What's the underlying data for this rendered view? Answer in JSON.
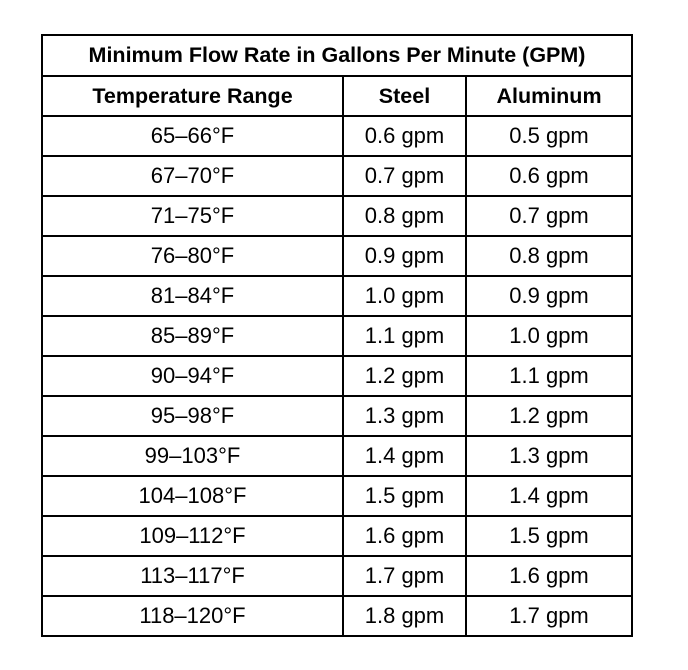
{
  "table": {
    "title": "Minimum Flow Rate in Gallons Per Minute (GPM)",
    "headers": [
      "Temperature Range",
      "Steel",
      "Aluminum"
    ],
    "rows": [
      [
        "65–66°F",
        "0.6 gpm",
        "0.5 gpm"
      ],
      [
        "67–70°F",
        "0.7 gpm",
        "0.6 gpm"
      ],
      [
        "71–75°F",
        "0.8 gpm",
        "0.7 gpm"
      ],
      [
        "76–80°F",
        "0.9 gpm",
        "0.8 gpm"
      ],
      [
        "81–84°F",
        "1.0 gpm",
        "0.9 gpm"
      ],
      [
        "85–89°F",
        "1.1 gpm",
        "1.0 gpm"
      ],
      [
        "90–94°F",
        "1.2 gpm",
        "1.1 gpm"
      ],
      [
        "95–98°F",
        "1.3 gpm",
        "1.2 gpm"
      ],
      [
        "99–103°F",
        "1.4 gpm",
        "1.3 gpm"
      ],
      [
        "104–108°F",
        "1.5 gpm",
        "1.4 gpm"
      ],
      [
        "109–112°F",
        "1.6 gpm",
        "1.5 gpm"
      ],
      [
        "113–117°F",
        "1.7 gpm",
        "1.6 gpm"
      ],
      [
        "118–120°F",
        "1.8 gpm",
        "1.7 gpm"
      ]
    ]
  }
}
